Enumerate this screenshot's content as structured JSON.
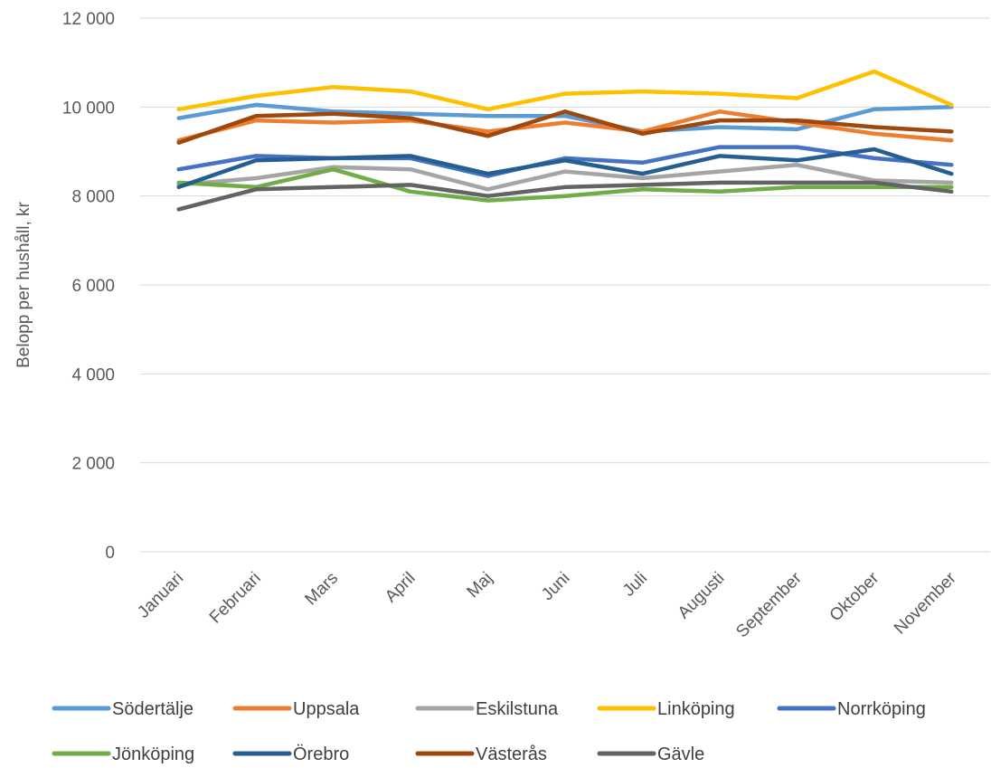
{
  "chart_data": {
    "type": "line",
    "title": "",
    "xlabel": "",
    "ylabel": "Belopp per hushåll, kr",
    "ylim": [
      0,
      12000
    ],
    "yticks": [
      {
        "value": 0,
        "label": "0"
      },
      {
        "value": 2000,
        "label": "2 000"
      },
      {
        "value": 4000,
        "label": "4 000"
      },
      {
        "value": 6000,
        "label": "6 000"
      },
      {
        "value": 8000,
        "label": "8 000"
      },
      {
        "value": 10000,
        "label": "10 000"
      },
      {
        "value": 12000,
        "label": "12 000"
      }
    ],
    "grid": true,
    "legend_position": "bottom",
    "categories": [
      "Januari",
      "Februari",
      "Mars",
      "April",
      "Maj",
      "Juni",
      "Juli",
      "Augusti",
      "September",
      "Oktober",
      "November"
    ],
    "series": [
      {
        "name": "Södertälje",
        "color": "#5b9bd5",
        "values": [
          9750,
          10050,
          9900,
          9850,
          9800,
          9800,
          9450,
          9550,
          9500,
          9950,
          10000
        ]
      },
      {
        "name": "Uppsala",
        "color": "#ed7d31",
        "values": [
          9250,
          9700,
          9650,
          9700,
          9450,
          9650,
          9450,
          9900,
          9650,
          9400,
          9250
        ]
      },
      {
        "name": "Eskilstuna",
        "color": "#a5a5a5",
        "values": [
          8250,
          8400,
          8650,
          8600,
          8150,
          8550,
          8400,
          8550,
          8700,
          8350,
          8300
        ]
      },
      {
        "name": "Linköping",
        "color": "#ffc000",
        "values": [
          9950,
          10250,
          10450,
          10350,
          9950,
          10300,
          10350,
          10300,
          10200,
          10800,
          10050
        ]
      },
      {
        "name": "Norrköping",
        "color": "#4472c4",
        "values": [
          8600,
          8900,
          8850,
          8850,
          8450,
          8850,
          8750,
          9100,
          9100,
          8850,
          8700
        ]
      },
      {
        "name": "Jönköping",
        "color": "#70ad47",
        "values": [
          8300,
          8200,
          8600,
          8100,
          7900,
          8000,
          8150,
          8100,
          8200,
          8200,
          8200
        ]
      },
      {
        "name": "Örebro",
        "color": "#255e91",
        "values": [
          8200,
          8800,
          8850,
          8900,
          8500,
          8800,
          8500,
          8900,
          8800,
          9050,
          8500
        ]
      },
      {
        "name": "Västerås",
        "color": "#9e480e",
        "values": [
          9200,
          9800,
          9850,
          9750,
          9350,
          9900,
          9400,
          9700,
          9700,
          9550,
          9450
        ]
      },
      {
        "name": "Gävle",
        "color": "#636363",
        "values": [
          7700,
          8150,
          8200,
          8250,
          8000,
          8200,
          8250,
          8300,
          8300,
          8300,
          8100
        ]
      }
    ]
  }
}
